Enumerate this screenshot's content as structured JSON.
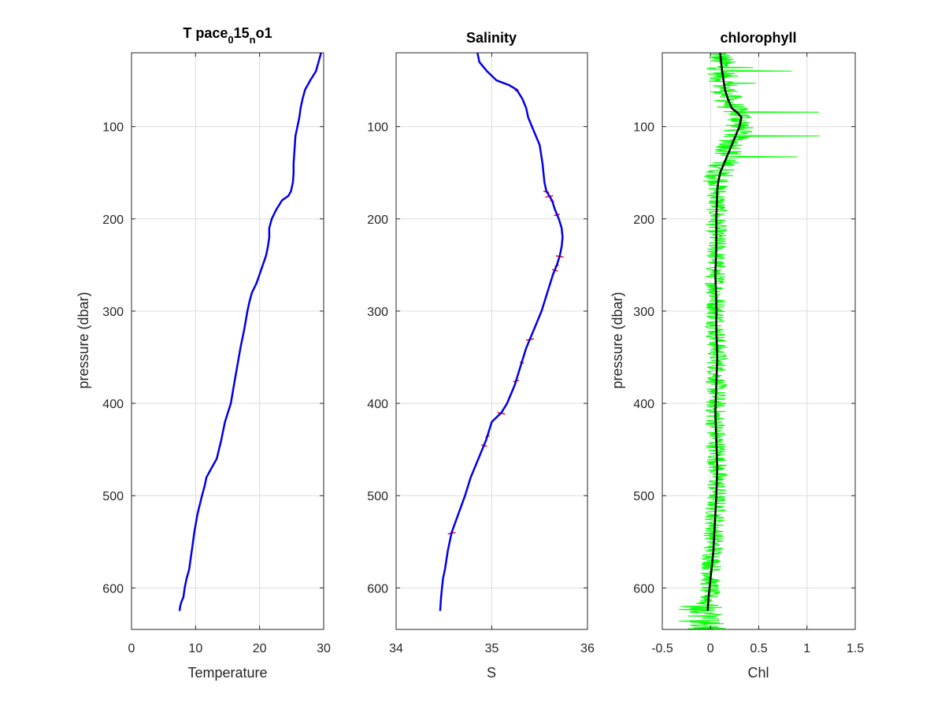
{
  "colors": {
    "temperature_line": "#0000e6",
    "salinity_line": "#0000e6",
    "salinity_spikes": "#ff0000",
    "chl_raw": "#00ff00",
    "chl_smooth": "#000000",
    "grid": "#dcdcdc",
    "axes": "#262626"
  },
  "chart_data": [
    {
      "type": "line",
      "title": {
        "base": "T pace",
        "sub1": "0",
        "mid": "15",
        "sub2": "n",
        "tail": "o1"
      },
      "xlabel": "Temperature",
      "ylabel": "pressure (dbar)",
      "xlim": [
        0,
        30
      ],
      "ylim": [
        20,
        645
      ],
      "y_reversed": true,
      "grid": true,
      "xticks": [
        0,
        10,
        20,
        30
      ],
      "xtick_labels": [
        "0",
        "10",
        "20",
        "30"
      ],
      "yticks": [
        100,
        200,
        300,
        400,
        500,
        600
      ],
      "ytick_labels": [
        "100",
        "200",
        "300",
        "400",
        "500",
        "600"
      ],
      "series": [
        {
          "x": [
            29.6,
            29.2,
            28.8,
            27.9,
            27.1,
            26.7,
            26.4,
            26.2,
            25.9,
            25.6,
            25.5,
            25.4,
            25.3,
            25.3,
            25.2,
            24.9,
            24.5,
            23.5,
            22.6,
            21.9,
            21.5,
            21.5,
            21.3,
            21.0,
            20.5,
            20.0,
            19.5,
            18.8,
            18.4,
            18.1,
            17.6,
            17.0,
            16.5,
            16.0,
            15.5,
            14.6,
            14.0,
            13.3,
            12.5,
            11.7,
            11.4,
            11.0,
            10.3,
            9.8,
            9.4,
            9.2,
            9.0,
            8.6,
            8.3,
            8.1,
            7.8,
            7.6,
            7.5
          ],
          "y": [
            20,
            30,
            40,
            50,
            60,
            70,
            80,
            90,
            100,
            110,
            120,
            130,
            140,
            150,
            160,
            170,
            175,
            180,
            190,
            200,
            210,
            220,
            230,
            240,
            250,
            260,
            270,
            280,
            290,
            300,
            320,
            340,
            360,
            380,
            400,
            420,
            440,
            460,
            470,
            480,
            490,
            500,
            520,
            540,
            560,
            570,
            580,
            590,
            600,
            610,
            615,
            620,
            625
          ]
        }
      ]
    },
    {
      "type": "line",
      "title": "Salinity",
      "xlabel": "S",
      "ylabel": "",
      "xlim": [
        34,
        36
      ],
      "ylim": [
        20,
        645
      ],
      "y_reversed": true,
      "grid": true,
      "xticks": [
        34,
        35,
        36
      ],
      "xtick_labels": [
        "34",
        "35",
        "36"
      ],
      "yticks": [
        100,
        200,
        300,
        400,
        500,
        600
      ],
      "ytick_labels": [
        "100",
        "200",
        "300",
        "400",
        "500",
        "600"
      ],
      "series": [
        {
          "x": [
            34.85,
            34.87,
            34.95,
            35.05,
            35.18,
            35.26,
            35.32,
            35.36,
            35.38,
            35.42,
            35.5,
            35.53,
            35.55,
            35.57,
            35.6,
            35.63,
            35.66,
            35.7,
            35.73,
            35.74,
            35.73,
            35.71,
            35.68,
            35.64,
            35.58,
            35.52,
            35.44,
            35.36,
            35.3,
            35.24,
            35.16,
            35.1,
            35.0,
            34.94,
            34.86,
            34.78,
            34.72,
            34.65,
            34.58,
            34.54,
            34.51,
            34.49,
            34.48,
            34.47,
            34.46
          ],
          "y": [
            20,
            30,
            40,
            50,
            55,
            60,
            70,
            80,
            90,
            100,
            120,
            140,
            160,
            170,
            175,
            180,
            190,
            200,
            210,
            220,
            230,
            240,
            250,
            260,
            280,
            300,
            320,
            340,
            360,
            380,
            400,
            410,
            420,
            440,
            460,
            480,
            500,
            520,
            540,
            560,
            580,
            590,
            600,
            610,
            625
          ]
        }
      ]
    },
    {
      "type": "line",
      "title": "chlorophyll",
      "xlabel": "Chl",
      "ylabel": "pressure (dbar)",
      "xlim": [
        -0.5,
        1.5
      ],
      "ylim": [
        20,
        645
      ],
      "y_reversed": true,
      "grid": true,
      "xticks": [
        -0.5,
        0,
        0.5,
        1,
        1.5
      ],
      "xtick_labels": [
        "-0.5",
        "0",
        "0.5",
        "1",
        "1.5"
      ],
      "yticks": [
        100,
        200,
        300,
        400,
        500,
        600
      ],
      "ytick_labels": [
        "100",
        "200",
        "300",
        "400",
        "500",
        "600"
      ],
      "series": [
        {
          "x": [
            0.1,
            0.12,
            0.15,
            0.18,
            0.22,
            0.28,
            0.32,
            0.3,
            0.26,
            0.22,
            0.18,
            0.14,
            0.1,
            0.08,
            0.07,
            0.06,
            0.06,
            0.05,
            0.06,
            0.06,
            0.07,
            0.06,
            0.05,
            0.06,
            0.07,
            0.06,
            0.05,
            0.04,
            0.03,
            0.01,
            -0.01,
            -0.02,
            -0.03
          ],
          "y": [
            20,
            40,
            60,
            70,
            80,
            85,
            90,
            100,
            110,
            120,
            130,
            140,
            150,
            160,
            170,
            200,
            230,
            260,
            290,
            320,
            350,
            380,
            410,
            440,
            470,
            500,
            520,
            540,
            560,
            580,
            600,
            610,
            625
          ]
        }
      ]
    }
  ]
}
